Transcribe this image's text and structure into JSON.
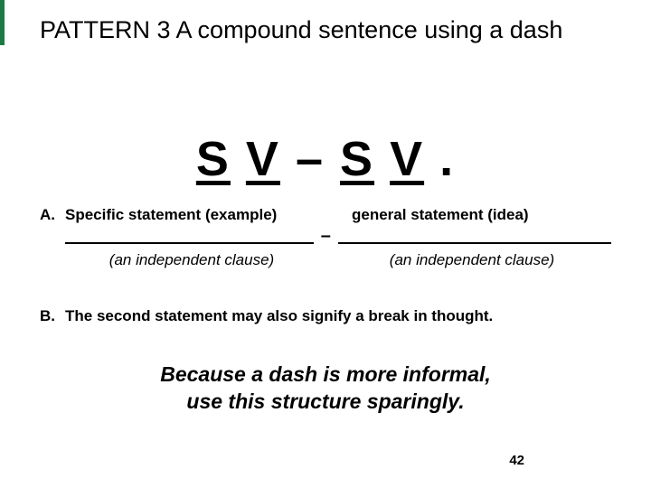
{
  "accent_color": "#1e7a45",
  "title": "PATTERN 3 A compound sentence using a dash",
  "pattern": {
    "s1": "S",
    "v1": "V",
    "dash": "–",
    "s2": "S",
    "v2": "V",
    "period": "."
  },
  "item_a": {
    "bullet": "A.",
    "left": "Specific statement (example)",
    "right": "general statement (idea)",
    "dash": "–",
    "clause_left": "(an independent clause)",
    "clause_right": "(an independent clause)"
  },
  "item_b": {
    "bullet": "B.",
    "text": "The second statement may also signify a break in thought."
  },
  "informal_note_line1": "Because a dash is more informal,",
  "informal_note_line2": "use this structure sparingly.",
  "page_number": "42"
}
